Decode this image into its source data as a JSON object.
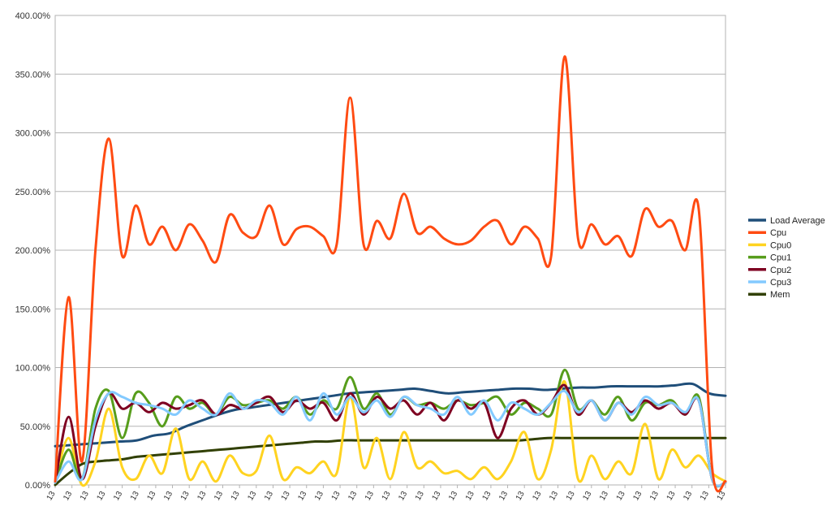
{
  "chart_data": {
    "type": "line",
    "title": "",
    "xlabel": "",
    "ylabel": "",
    "ylim": [
      0,
      400
    ],
    "y_tick_format": "percent_2dp",
    "y_ticks": [
      0,
      50,
      100,
      150,
      200,
      250,
      300,
      350,
      400
    ],
    "y_tick_labels": [
      "0.00%",
      "50.00%",
      "100.00%",
      "150.00%",
      "200.00%",
      "250.00%",
      "300.00%",
      "350.00%",
      "400.00%"
    ],
    "x_tick_label": "13",
    "x_tick_count": 41,
    "grid": "horizontal",
    "legend_position": "right",
    "series": [
      {
        "name": "Load Average",
        "color": "#1f4e79",
        "values": [
          33,
          34,
          35,
          36,
          37,
          38,
          42,
          44,
          50,
          55,
          60,
          64,
          66,
          68,
          70,
          72,
          74,
          76,
          78,
          79,
          80,
          81,
          82,
          80,
          78,
          79,
          80,
          81,
          82,
          82,
          81,
          82,
          83,
          83,
          84,
          84,
          84,
          84,
          85,
          86,
          78,
          76
        ]
      },
      {
        "name": "Cpu",
        "color": "#ff4b12",
        "values": [
          3,
          160,
          20,
          200,
          295,
          195,
          238,
          205,
          220,
          200,
          222,
          208,
          190,
          230,
          215,
          212,
          238,
          205,
          218,
          220,
          212,
          205,
          330,
          205,
          225,
          210,
          248,
          215,
          220,
          210,
          205,
          208,
          220,
          225,
          205,
          220,
          210,
          195,
          365,
          210,
          222,
          205,
          212,
          195,
          235,
          220,
          225,
          200,
          235,
          15,
          3
        ]
      },
      {
        "name": "Cpu0",
        "color": "#ffd320",
        "values": [
          2,
          40,
          0,
          20,
          65,
          15,
          5,
          25,
          10,
          48,
          5,
          20,
          3,
          25,
          10,
          12,
          42,
          5,
          15,
          10,
          20,
          10,
          75,
          15,
          40,
          5,
          45,
          15,
          20,
          10,
          12,
          5,
          15,
          5,
          20,
          45,
          5,
          30,
          88,
          5,
          25,
          5,
          20,
          10,
          52,
          5,
          30,
          15,
          25,
          10,
          3
        ]
      },
      {
        "name": "Cpu1",
        "color": "#579d1c",
        "values": [
          2,
          30,
          5,
          65,
          80,
          40,
          78,
          70,
          50,
          75,
          65,
          70,
          60,
          75,
          68,
          70,
          72,
          65,
          75,
          60,
          72,
          65,
          92,
          65,
          78,
          60,
          75,
          68,
          70,
          65,
          72,
          68,
          70,
          75,
          60,
          70,
          65,
          60,
          98,
          65,
          72,
          60,
          75,
          55,
          70,
          68,
          72,
          60,
          75,
          5,
          2
        ]
      },
      {
        "name": "Cpu2",
        "color": "#7e0021",
        "values": [
          2,
          58,
          5,
          50,
          78,
          65,
          70,
          62,
          70,
          65,
          68,
          72,
          60,
          68,
          65,
          70,
          75,
          62,
          72,
          65,
          70,
          55,
          78,
          60,
          75,
          65,
          72,
          60,
          70,
          55,
          72,
          65,
          70,
          40,
          65,
          72,
          60,
          70,
          85,
          60,
          72,
          55,
          70,
          62,
          72,
          65,
          70,
          60,
          72,
          5,
          2
        ]
      },
      {
        "name": "Cpu3",
        "color": "#83caff",
        "values": [
          2,
          20,
          5,
          55,
          78,
          75,
          70,
          68,
          65,
          60,
          72,
          65,
          60,
          78,
          65,
          72,
          70,
          60,
          75,
          55,
          78,
          60,
          75,
          62,
          72,
          58,
          75,
          68,
          65,
          60,
          75,
          60,
          72,
          55,
          70,
          65,
          60,
          70,
          80,
          62,
          72,
          55,
          70,
          60,
          75,
          68,
          70,
          62,
          72,
          5,
          2
        ]
      },
      {
        "name": "Mem",
        "color": "#314004",
        "values": [
          0,
          10,
          18,
          20,
          21,
          22,
          24,
          25,
          26,
          27,
          28,
          29,
          30,
          31,
          32,
          33,
          34,
          35,
          36,
          37,
          37,
          38,
          38,
          38,
          38,
          38,
          38,
          38,
          38,
          38,
          38,
          38,
          38,
          38,
          38,
          39,
          40,
          40,
          40,
          40,
          40,
          40,
          40,
          40,
          40,
          40,
          40,
          40,
          40,
          40
        ]
      }
    ]
  }
}
